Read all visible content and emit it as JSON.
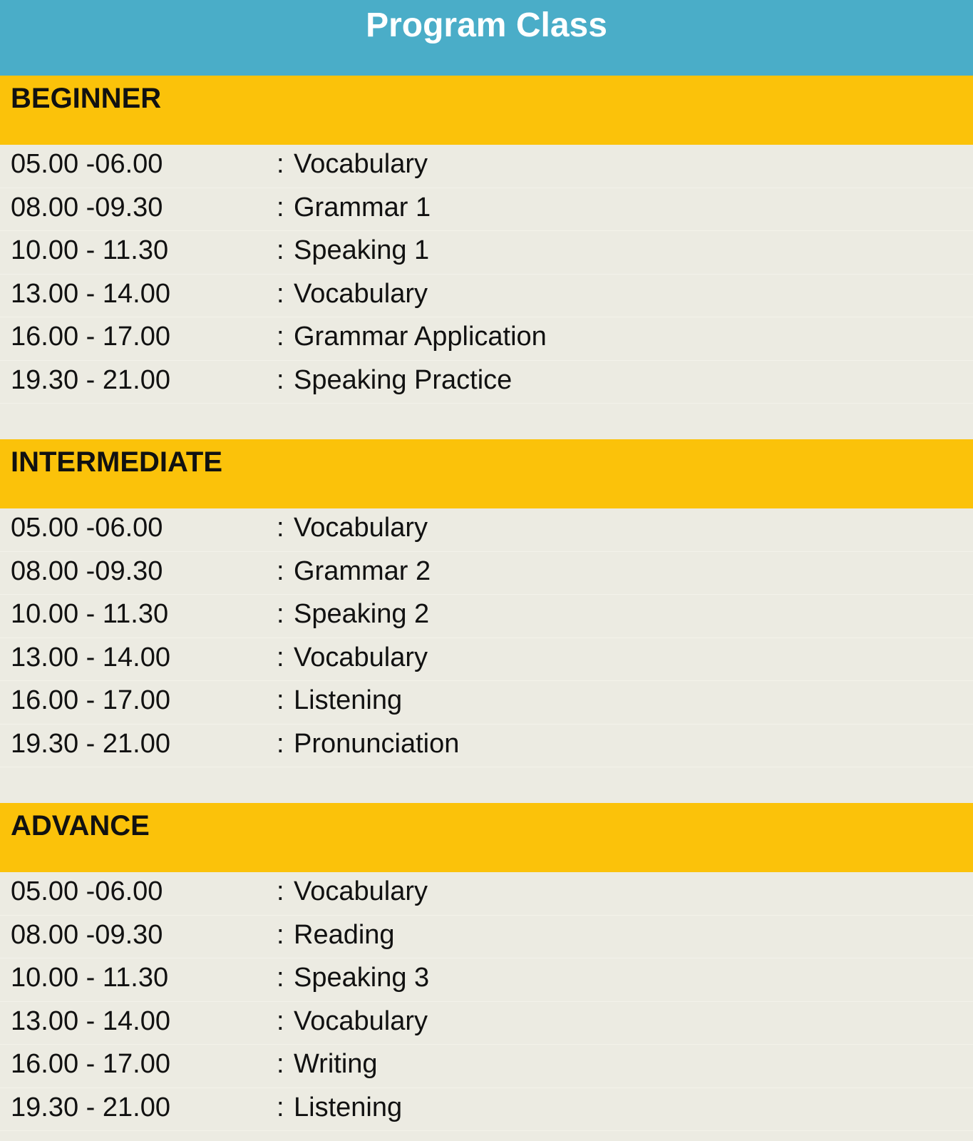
{
  "title": "Program Class",
  "sections": [
    {
      "level": "BEGINNER",
      "rows": [
        {
          "time": "05.00 -06.00",
          "subject": "Vocabulary"
        },
        {
          "time": "08.00 -09.30",
          "subject": "Grammar 1"
        },
        {
          "time": "10.00 - 11.30",
          "subject": "Speaking 1"
        },
        {
          "time": "13.00 - 14.00",
          "subject": "Vocabulary"
        },
        {
          "time": "16.00 - 17.00",
          "subject": "Grammar Application"
        },
        {
          "time": "19.30 - 21.00",
          "subject": "Speaking Practice"
        }
      ]
    },
    {
      "level": "INTERMEDIATE",
      "rows": [
        {
          "time": "05.00 -06.00",
          "subject": "Vocabulary"
        },
        {
          "time": "08.00 -09.30",
          "subject": "Grammar 2"
        },
        {
          "time": "10.00 - 11.30",
          "subject": "Speaking 2"
        },
        {
          "time": "13.00 - 14.00",
          "subject": "Vocabulary"
        },
        {
          "time": "16.00 - 17.00",
          "subject": "Listening"
        },
        {
          "time": "19.30 - 21.00",
          "subject": "Pronunciation"
        }
      ]
    },
    {
      "level": "ADVANCE",
      "rows": [
        {
          "time": "05.00 -06.00",
          "subject": "Vocabulary"
        },
        {
          "time": "08.00 -09.30",
          "subject": "Reading"
        },
        {
          "time": "10.00 - 11.30",
          "subject": "Speaking 3"
        },
        {
          "time": "13.00 - 14.00",
          "subject": "Vocabulary"
        },
        {
          "time": "16.00 - 17.00",
          "subject": "Writing"
        },
        {
          "time": "19.30 - 21.00",
          "subject": "Listening"
        }
      ]
    }
  ],
  "separator": ":",
  "colors": {
    "header": "#4aadc8",
    "level_band": "#fbc20a",
    "background": "#ecebe2"
  }
}
